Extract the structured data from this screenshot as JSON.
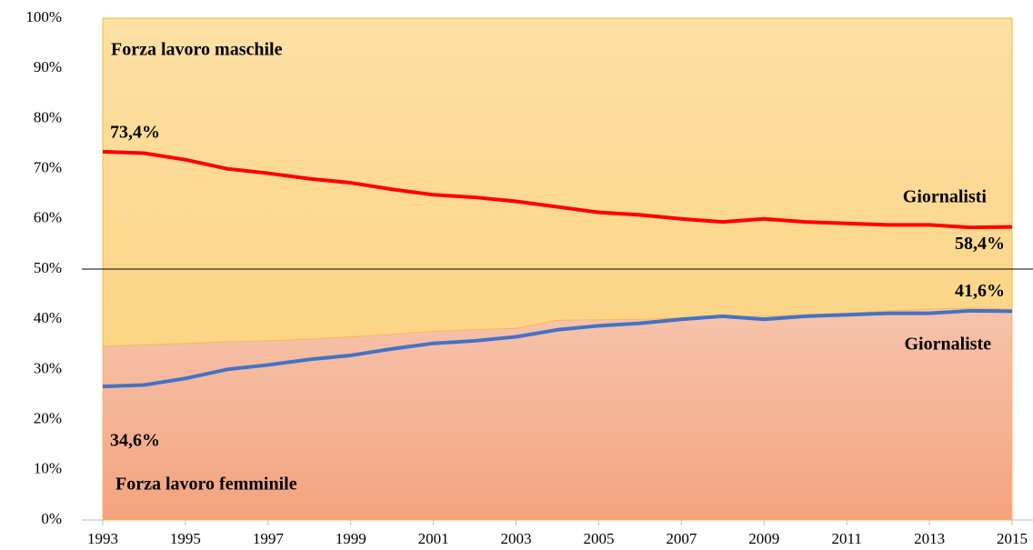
{
  "chart_data": {
    "type": "line",
    "x": [
      1993,
      1994,
      1995,
      1996,
      1997,
      1998,
      1999,
      2000,
      2001,
      2002,
      2003,
      2004,
      2005,
      2006,
      2007,
      2008,
      2009,
      2010,
      2011,
      2012,
      2013,
      2014,
      2015
    ],
    "xlim": [
      1993,
      2015
    ],
    "xticks": [
      1993,
      1995,
      1997,
      1999,
      2001,
      2003,
      2005,
      2007,
      2009,
      2011,
      2013,
      2015
    ],
    "ylim": [
      0,
      100
    ],
    "yticks": [
      {
        "value": 0,
        "label": "0%"
      },
      {
        "value": 10,
        "label": "10%"
      },
      {
        "value": 20,
        "label": "20%"
      },
      {
        "value": 30,
        "label": "30%"
      },
      {
        "value": 40,
        "label": "40%"
      },
      {
        "value": 50,
        "label": "50%"
      },
      {
        "value": 60,
        "label": "60%"
      },
      {
        "value": 70,
        "label": "70%"
      },
      {
        "value": 80,
        "label": "80%"
      },
      {
        "value": 90,
        "label": "90%"
      },
      {
        "value": 100,
        "label": "100%"
      }
    ],
    "hline": 50,
    "annotations": [
      {
        "text": "Forza lavoro maschile",
        "color": "#8a4a12"
      }
    ],
    "series": [
      {
        "name": "Forza lavoro femminile",
        "kind": "area",
        "color": "#f4a581",
        "label_color": "#e8772e",
        "values": [
          34.6,
          34.9,
          35.2,
          35.5,
          35.7,
          36.0,
          36.5,
          37.0,
          37.6,
          37.9,
          38.2,
          39.8,
          39.9,
          40.0,
          40.3,
          40.6,
          40.6,
          40.9,
          41.2,
          41.7,
          42.0,
          42.2,
          42.0
        ],
        "value_labels": [
          "34,6%",
          null,
          null,
          null,
          null,
          null,
          null,
          null,
          null,
          null,
          null,
          null,
          null,
          null,
          null,
          null,
          null,
          null,
          null,
          null,
          null,
          null,
          null
        ]
      },
      {
        "name": "Giornalisti",
        "kind": "line",
        "color": "#ff0000",
        "label_color": "#ff0000",
        "values": [
          73.4,
          73.1,
          71.8,
          70.0,
          69.1,
          68.0,
          67.2,
          65.9,
          64.8,
          64.3,
          63.5,
          62.4,
          61.3,
          60.8,
          60.0,
          59.4,
          60.0,
          59.4,
          59.1,
          58.8,
          58.8,
          58.3,
          58.4
        ],
        "value_labels": [
          "73,4%",
          null,
          null,
          null,
          null,
          null,
          null,
          null,
          null,
          null,
          null,
          null,
          null,
          null,
          null,
          null,
          null,
          null,
          null,
          null,
          null,
          null,
          "58,4%"
        ]
      },
      {
        "name": "Giornaliste",
        "kind": "line",
        "color": "#4472c4",
        "label_color": "#4472c4",
        "values": [
          26.6,
          26.9,
          28.2,
          30.0,
          30.9,
          32.0,
          32.8,
          34.1,
          35.2,
          35.7,
          36.5,
          37.9,
          38.7,
          39.2,
          40.0,
          40.6,
          40.0,
          40.6,
          40.9,
          41.2,
          41.2,
          41.7,
          41.6
        ],
        "value_labels": [
          null,
          null,
          null,
          null,
          null,
          null,
          null,
          null,
          null,
          null,
          null,
          null,
          null,
          null,
          null,
          null,
          null,
          null,
          null,
          null,
          null,
          null,
          "41,6%"
        ]
      }
    ]
  }
}
